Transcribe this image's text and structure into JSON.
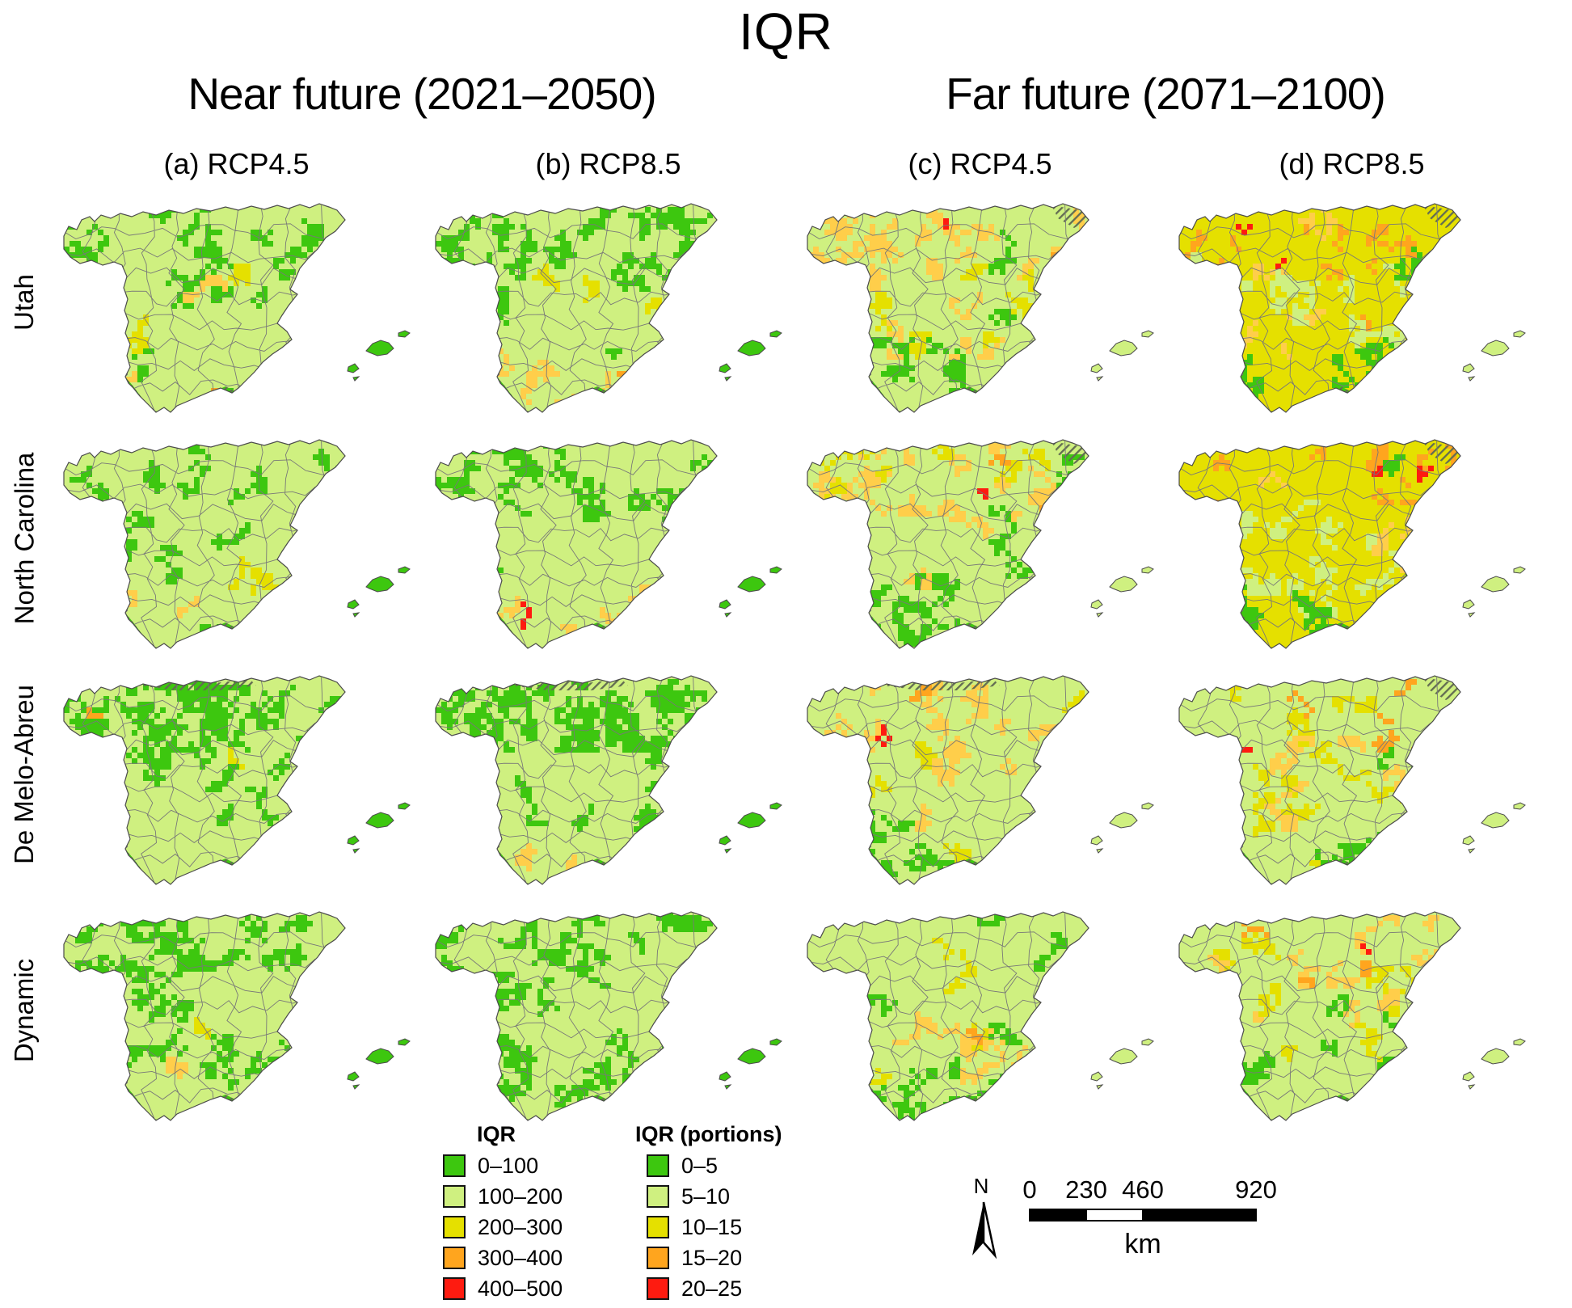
{
  "title": "IQR",
  "groups": [
    {
      "label": "Near future (2021–2050)"
    },
    {
      "label": "Far future (2071–2100)"
    }
  ],
  "columns": [
    {
      "label": "(a) RCP4.5"
    },
    {
      "label": "(b) RCP8.5"
    },
    {
      "label": "(c) RCP4.5"
    },
    {
      "label": "(d) RCP8.5"
    }
  ],
  "rows": [
    {
      "label": "Utah"
    },
    {
      "label": "North Carolina"
    },
    {
      "label": "De Melo-Abreu"
    },
    {
      "label": "Dynamic"
    }
  ],
  "legends": [
    {
      "title": "IQR",
      "items": [
        {
          "label": "0–100",
          "color": "green"
        },
        {
          "label": "100–200",
          "color": "lightgreen"
        },
        {
          "label": "200–300",
          "color": "yellow"
        },
        {
          "label": "300–400",
          "color": "orange"
        },
        {
          "label": "400–500",
          "color": "red"
        }
      ]
    },
    {
      "title": "IQR (portions)",
      "items": [
        {
          "label": "0–5",
          "color": "green"
        },
        {
          "label": "5–10",
          "color": "lightgreen"
        },
        {
          "label": "10–15",
          "color": "yellow"
        },
        {
          "label": "15–20",
          "color": "orange"
        },
        {
          "label": "20–25",
          "color": "red"
        }
      ]
    }
  ],
  "scalebar": {
    "ticks": [
      "0",
      "230",
      "460",
      "920"
    ],
    "unit": "km"
  },
  "north": {
    "label": "N"
  },
  "palette": {
    "green": "#3dc70f",
    "lightgreen": "#cff080",
    "yellow": "#e5e000",
    "gold": "#ffce4a",
    "orange": "#ffa51e",
    "red": "#fe1b10",
    "hatch": "#636d52",
    "border": "#787878",
    "coast": "#4b4b4b"
  },
  "maps": [
    {
      "row": 0,
      "col": 0,
      "base": "lightgreen",
      "islands": "green",
      "hatch": [
        "south"
      ],
      "patches": [
        [
          "green",
          22,
          "a"
        ],
        [
          "green",
          6,
          "n"
        ],
        [
          "yellow",
          3,
          "c"
        ],
        [
          "gold",
          4,
          "s"
        ],
        [
          "gold",
          2,
          "c"
        ],
        [
          "orange",
          1,
          "s"
        ]
      ]
    },
    {
      "row": 0,
      "col": 1,
      "base": "lightgreen",
      "islands": "green",
      "hatch": [
        "south"
      ],
      "patches": [
        [
          "green",
          26,
          "n"
        ],
        [
          "green",
          8,
          "a"
        ],
        [
          "gold",
          6,
          "s"
        ],
        [
          "yellow",
          3,
          "c"
        ],
        [
          "orange",
          2,
          "s"
        ],
        [
          "red",
          1,
          "s"
        ]
      ]
    },
    {
      "row": 0,
      "col": 2,
      "base": "lightgreen",
      "islands": "lightgreen",
      "hatch": [
        "south",
        "ne"
      ],
      "patches": [
        [
          "gold",
          18,
          "n"
        ],
        [
          "gold",
          6,
          "c"
        ],
        [
          "yellow",
          8,
          "c"
        ],
        [
          "green",
          10,
          "sw"
        ],
        [
          "green",
          4,
          "e"
        ],
        [
          "orange",
          2,
          "ne"
        ],
        [
          "red",
          1,
          "n"
        ]
      ]
    },
    {
      "row": 0,
      "col": 3,
      "base": "yellow",
      "islands": "lightgreen",
      "hatch": [
        "south",
        "ne"
      ],
      "patches": [
        [
          "orange",
          12,
          "n"
        ],
        [
          "orange",
          4,
          "e"
        ],
        [
          "red",
          3,
          "n"
        ],
        [
          "gold",
          8,
          "a"
        ],
        [
          "lightgreen",
          10,
          "c"
        ],
        [
          "lightgreen",
          4,
          "w"
        ],
        [
          "green",
          8,
          "s"
        ],
        [
          "green",
          4,
          "e"
        ]
      ]
    },
    {
      "row": 1,
      "col": 0,
      "base": "lightgreen",
      "islands": "green",
      "hatch": [
        "south"
      ],
      "patches": [
        [
          "green",
          16,
          "a"
        ],
        [
          "green",
          4,
          "n"
        ],
        [
          "yellow",
          2,
          "c"
        ],
        [
          "gold",
          2,
          "s"
        ]
      ]
    },
    {
      "row": 1,
      "col": 1,
      "base": "lightgreen",
      "islands": "green",
      "hatch": [
        "south"
      ],
      "patches": [
        [
          "green",
          20,
          "n"
        ],
        [
          "green",
          6,
          "a"
        ],
        [
          "gold",
          6,
          "s"
        ],
        [
          "orange",
          2,
          "s"
        ],
        [
          "red",
          1,
          "s"
        ]
      ]
    },
    {
      "row": 1,
      "col": 2,
      "base": "lightgreen",
      "islands": "lightgreen",
      "hatch": [
        "south",
        "ne"
      ],
      "patches": [
        [
          "gold",
          16,
          "n"
        ],
        [
          "gold",
          5,
          "c"
        ],
        [
          "yellow",
          6,
          "n"
        ],
        [
          "green",
          12,
          "sw"
        ],
        [
          "green",
          4,
          "e"
        ],
        [
          "orange",
          2,
          "ne"
        ],
        [
          "red",
          1,
          "n"
        ]
      ]
    },
    {
      "row": 1,
      "col": 3,
      "base": "yellow",
      "islands": "lightgreen",
      "hatch": [
        "south",
        "ne"
      ],
      "patches": [
        [
          "orange",
          9,
          "ne"
        ],
        [
          "orange",
          3,
          "n"
        ],
        [
          "red",
          2,
          "ne"
        ],
        [
          "gold",
          6,
          "a"
        ],
        [
          "lightgreen",
          12,
          "c"
        ],
        [
          "lightgreen",
          5,
          "sw"
        ],
        [
          "green",
          8,
          "s"
        ],
        [
          "green",
          3,
          "e"
        ]
      ]
    },
    {
      "row": 2,
      "col": 0,
      "base": "lightgreen",
      "islands": "green",
      "hatch": [
        "south",
        "north"
      ],
      "patches": [
        [
          "green",
          34,
          "n"
        ],
        [
          "green",
          8,
          "c"
        ],
        [
          "gold",
          2,
          "s"
        ],
        [
          "yellow",
          1,
          "c"
        ],
        [
          "orange",
          1,
          "nw"
        ]
      ]
    },
    {
      "row": 2,
      "col": 1,
      "base": "lightgreen",
      "islands": "green",
      "hatch": [
        "south",
        "north"
      ],
      "patches": [
        [
          "green",
          40,
          "n"
        ],
        [
          "green",
          8,
          "c"
        ],
        [
          "gold",
          2,
          "s"
        ]
      ]
    },
    {
      "row": 2,
      "col": 2,
      "base": "lightgreen",
      "islands": "lightgreen",
      "hatch": [
        "south",
        "north"
      ],
      "patches": [
        [
          "gold",
          12,
          "n"
        ],
        [
          "gold",
          5,
          "c"
        ],
        [
          "yellow",
          6,
          "a"
        ],
        [
          "green",
          8,
          "sw"
        ],
        [
          "green",
          3,
          "s"
        ],
        [
          "orange",
          2,
          "n"
        ],
        [
          "red",
          1,
          "nw"
        ]
      ]
    },
    {
      "row": 2,
      "col": 3,
      "base": "lightgreen",
      "islands": "lightgreen",
      "hatch": [
        "south",
        "ne"
      ],
      "patches": [
        [
          "yellow",
          16,
          "a"
        ],
        [
          "yellow",
          6,
          "c"
        ],
        [
          "gold",
          8,
          "c"
        ],
        [
          "orange",
          5,
          "ne"
        ],
        [
          "orange",
          2,
          "n"
        ],
        [
          "green",
          6,
          "s"
        ],
        [
          "green",
          2,
          "e"
        ],
        [
          "red",
          1,
          "nw"
        ]
      ]
    },
    {
      "row": 3,
      "col": 0,
      "base": "lightgreen",
      "islands": "green",
      "hatch": [
        "south"
      ],
      "patches": [
        [
          "green",
          36,
          "a"
        ],
        [
          "green",
          8,
          "n"
        ],
        [
          "gold",
          2,
          "s"
        ],
        [
          "yellow",
          1,
          "c"
        ]
      ]
    },
    {
      "row": 3,
      "col": 1,
      "base": "lightgreen",
      "islands": "green",
      "hatch": [
        "south"
      ],
      "patches": [
        [
          "green",
          42,
          "a"
        ],
        [
          "green",
          8,
          "n"
        ],
        [
          "gold",
          1,
          "s"
        ]
      ]
    },
    {
      "row": 3,
      "col": 2,
      "base": "lightgreen",
      "islands": "lightgreen",
      "hatch": [
        "south"
      ],
      "patches": [
        [
          "yellow",
          8,
          "a"
        ],
        [
          "gold",
          5,
          "se"
        ],
        [
          "gold",
          4,
          "c"
        ],
        [
          "green",
          10,
          "s"
        ],
        [
          "green",
          6,
          "a"
        ],
        [
          "orange",
          1,
          "se"
        ]
      ]
    },
    {
      "row": 3,
      "col": 3,
      "base": "lightgreen",
      "islands": "lightgreen",
      "hatch": [
        "south"
      ],
      "patches": [
        [
          "yellow",
          14,
          "a"
        ],
        [
          "gold",
          8,
          "n"
        ],
        [
          "gold",
          4,
          "c"
        ],
        [
          "orange",
          4,
          "n"
        ],
        [
          "green",
          8,
          "s"
        ],
        [
          "green",
          4,
          "c"
        ],
        [
          "red",
          1,
          "n"
        ]
      ]
    }
  ]
}
